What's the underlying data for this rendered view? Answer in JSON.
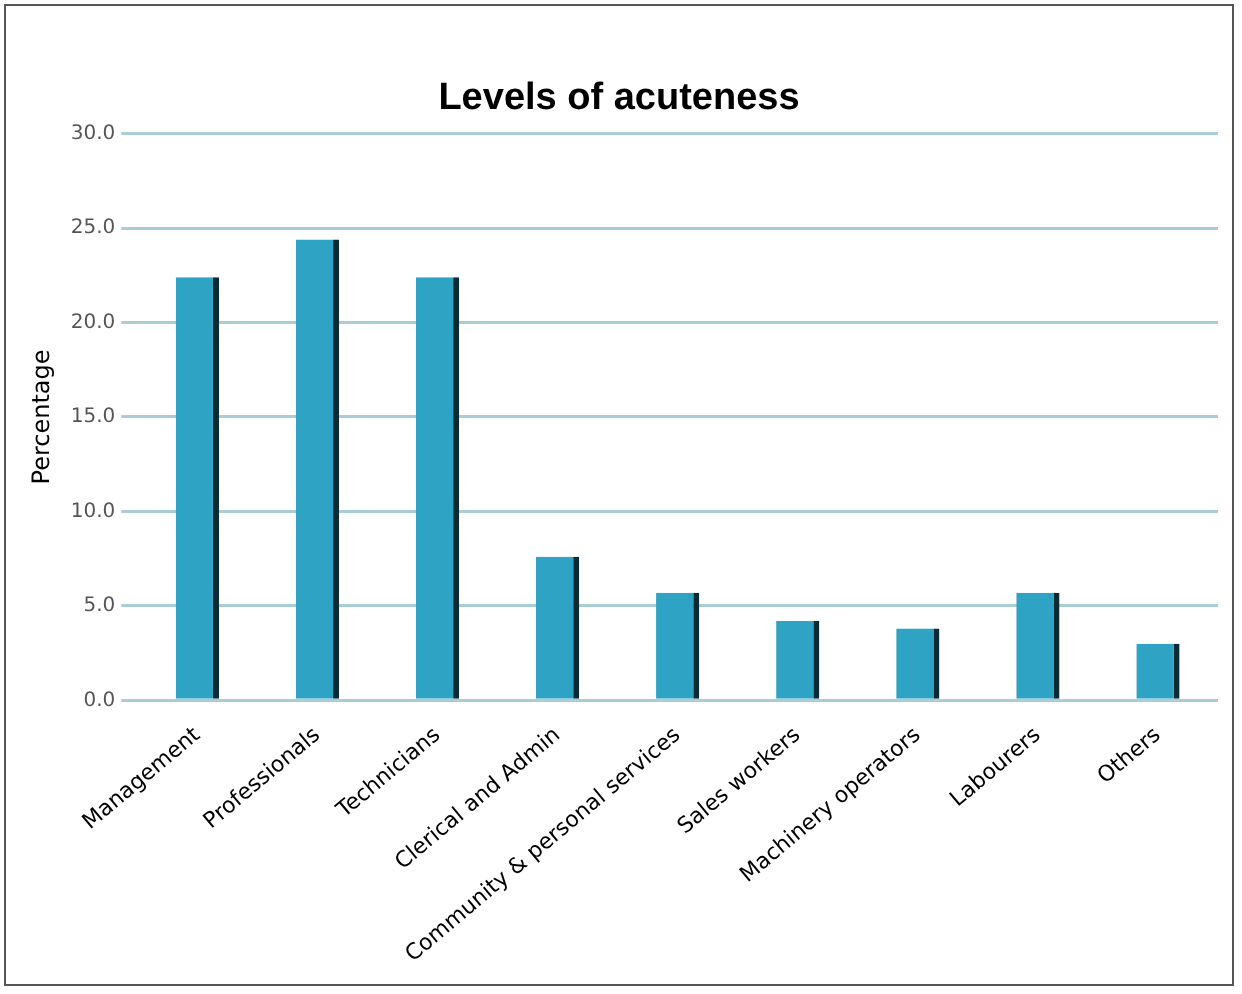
{
  "chart_data": {
    "type": "bar",
    "title": "Levels of acuteness",
    "ylabel": "Percentage",
    "categories": [
      "Management",
      "Professionals",
      "Technicians",
      "Clerical and Admin",
      "Community & personal services",
      "Sales workers",
      "Machinery operators",
      "Labourers",
      "Others"
    ],
    "values": [
      22.4,
      24.4,
      22.4,
      7.6,
      5.7,
      4.2,
      3.8,
      5.7,
      3.0
    ],
    "color": "#2fa3c4",
    "ylim": [
      0,
      30
    ],
    "yticks": [
      {
        "value": 0,
        "label": "0.0"
      },
      {
        "value": 5,
        "label": "5.0"
      },
      {
        "value": 10,
        "label": "10.0"
      },
      {
        "value": 15,
        "label": "15.0"
      },
      {
        "value": 20,
        "label": "20.0"
      },
      {
        "value": 25,
        "label": "25.0"
      },
      {
        "value": 30,
        "label": "30.0"
      }
    ],
    "grid": "y",
    "legend": false
  }
}
